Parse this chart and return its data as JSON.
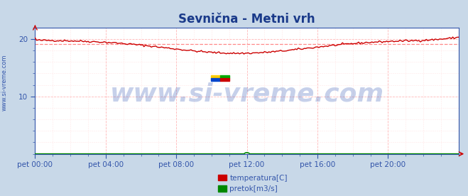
{
  "title": "Sevnična - Metni vrh",
  "title_color": "#1a3a8a",
  "title_fontsize": 12,
  "fig_bg_color": "#c8d8e8",
  "plot_bg_color": "#ffffff",
  "xmin": 0,
  "xmax": 288,
  "ymin": 0,
  "ymax": 22,
  "ytick_positions": [
    10,
    20
  ],
  "ytick_labels": [
    "10",
    "20"
  ],
  "xtick_labels": [
    "pet 00:00",
    "pet 04:00",
    "pet 08:00",
    "pet 12:00",
    "pet 16:00",
    "pet 20:00"
  ],
  "xtick_positions": [
    0,
    48,
    96,
    144,
    192,
    240
  ],
  "temp_avg": 19.1,
  "temp_line_color": "#cc0000",
  "temp_avg_color": "#ff8888",
  "flow_line_color": "#008800",
  "grid_color_major": "#ffaaaa",
  "grid_color_minor": "#ffdddd",
  "watermark_text": "www.si-vreme.com",
  "watermark_color": "#4466bb",
  "watermark_alpha": 0.3,
  "watermark_fontsize": 26,
  "ylabel_text": "www.si-vreme.com",
  "ylabel_color": "#3355aa",
  "ylabel_fontsize": 6,
  "legend_temp_color": "#cc0000",
  "legend_flow_color": "#008800",
  "legend_temp_label": "temperatura[C]",
  "legend_flow_label": "pretok[m3/s]",
  "arrow_color": "#cc0000",
  "axis_color": "#3355aa",
  "logo_yellow": "#ffcc00",
  "logo_blue": "#0044cc",
  "logo_green": "#00aa00",
  "logo_red": "#cc0000"
}
